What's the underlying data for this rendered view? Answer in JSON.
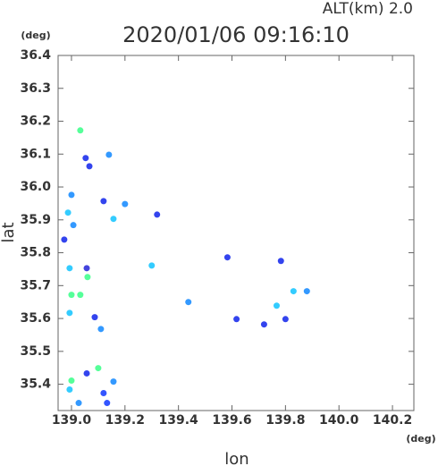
{
  "chart_data": {
    "type": "scatter",
    "title": "2020/01/06 09:16:10",
    "subtitle": "ALT(km) 2.0",
    "x_label": "lon",
    "y_label": "lat",
    "x_unit": "(deg)",
    "y_unit": "(deg)",
    "xlim": [
      138.95,
      140.28
    ],
    "ylim": [
      35.32,
      36.4
    ],
    "xticks": [
      {
        "value": 139.0,
        "label": "139.0"
      },
      139.2,
      139.4,
      139.6,
      139.8,
      {
        "value": 140.0,
        "label": "140.0"
      },
      140.2
    ],
    "yticks": [
      35.4,
      35.5,
      35.6,
      35.7,
      35.8,
      35.9,
      {
        "value": 36.0,
        "label": "36.0"
      },
      36.1,
      36.2,
      36.3,
      36.4
    ],
    "x": [
      139.033,
      139.053,
      139.067,
      139.0,
      138.987,
      139.007,
      138.973,
      138.993,
      139.057,
      139.06,
      139.0,
      139.033,
      138.993,
      139.087,
      139.11,
      139.1,
      139.057,
      139.0,
      139.157,
      139.12,
      138.993,
      139.027,
      139.133,
      139.12,
      139.2,
      139.157,
      139.32,
      139.437,
      139.583,
      139.783,
      139.83,
      139.88,
      139.767,
      139.8,
      139.617,
      139.72,
      139.14,
      139.3
    ],
    "y": [
      36.172,
      36.088,
      36.063,
      35.976,
      35.922,
      35.884,
      35.84,
      35.753,
      35.753,
      35.726,
      35.672,
      35.672,
      35.617,
      35.604,
      35.568,
      35.449,
      35.433,
      35.411,
      35.408,
      35.373,
      35.384,
      35.343,
      35.343,
      35.957,
      35.948,
      35.903,
      35.916,
      35.65,
      35.786,
      35.775,
      35.683,
      35.683,
      35.639,
      35.598,
      35.598,
      35.582,
      36.098,
      35.761
    ],
    "colors": [
      "#55ff99",
      "#3344ee",
      "#3344ee",
      "#3399ff",
      "#33ccff",
      "#3399ff",
      "#3344ee",
      "#33ccff",
      "#4444dd",
      "#55ff99",
      "#55ff99",
      "#55ff99",
      "#33ccff",
      "#3344ee",
      "#3399ff",
      "#55ff99",
      "#3344ee",
      "#55ff99",
      "#3399ff",
      "#3355ff",
      "#33ccff",
      "#3399ff",
      "#3355ff",
      "#3344ee",
      "#3399ff",
      "#33ccff",
      "#3344ee",
      "#3399ff",
      "#3344ee",
      "#3344ee",
      "#33ccff",
      "#3399ff",
      "#33ccff",
      "#3344ee",
      "#3344ee",
      "#3344ee",
      "#3399ff",
      "#33ccff"
    ]
  }
}
